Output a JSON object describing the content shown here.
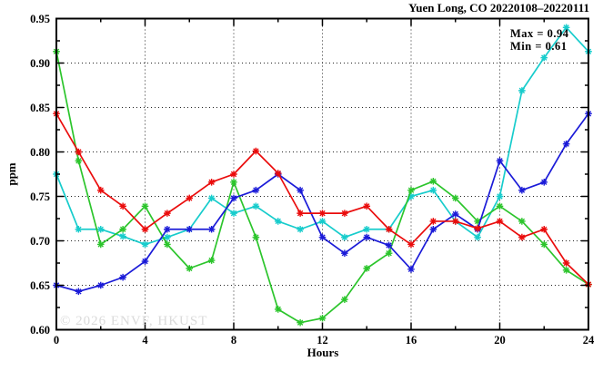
{
  "chart_data": {
    "type": "line",
    "title": "Yuen Long, CO 20220108–20220111",
    "xlabel": "Hours",
    "ylabel": "ppm",
    "xlim": [
      0,
      24
    ],
    "ylim": [
      0.6,
      0.95
    ],
    "x_major_ticks": [
      0,
      4,
      8,
      12,
      16,
      20,
      24
    ],
    "x_minor_ticks": [
      2,
      6,
      10,
      14,
      18,
      22
    ],
    "x_tick_labels": [
      "0",
      "4",
      "8",
      "12",
      "16",
      "20",
      "24"
    ],
    "y_major_ticks": [
      0.6,
      0.65,
      0.7,
      0.75,
      0.8,
      0.85,
      0.9,
      0.95
    ],
    "y_minor_ticks": [
      0.625,
      0.675,
      0.725,
      0.775,
      0.825,
      0.875,
      0.925
    ],
    "y_tick_labels": [
      "0.60",
      "0.65",
      "0.70",
      "0.75",
      "0.80",
      "0.85",
      "0.90",
      "0.95"
    ],
    "grid": "dotted",
    "legend": "none",
    "marker": "asterisk",
    "annotations": [
      "Max = 0.94",
      "Min = 0.61"
    ],
    "watermark": "© 2026 ENVF, HKUST",
    "x": [
      0,
      1,
      2,
      3,
      4,
      5,
      6,
      7,
      8,
      9,
      10,
      11,
      12,
      13,
      14,
      15,
      16,
      17,
      18,
      19,
      20,
      21,
      22,
      23,
      24
    ],
    "series": [
      {
        "name": "cyan",
        "color": "#17cccc",
        "values": [
          0.775,
          0.713,
          0.713,
          0.705,
          0.696,
          0.704,
          0.713,
          0.748,
          0.731,
          0.739,
          0.722,
          0.713,
          0.722,
          0.704,
          0.713,
          0.713,
          0.75,
          0.757,
          0.722,
          0.704,
          0.75,
          0.869,
          0.906,
          0.94,
          0.913
        ]
      },
      {
        "name": "green",
        "color": "#2cc52c",
        "values": [
          0.913,
          0.79,
          0.696,
          0.713,
          0.739,
          0.696,
          0.669,
          0.678,
          0.766,
          0.704,
          0.623,
          0.608,
          0.613,
          0.634,
          0.669,
          0.686,
          0.757,
          0.767,
          0.748,
          0.722,
          0.739,
          0.722,
          0.696,
          0.667,
          0.651
        ]
      },
      {
        "name": "blue",
        "color": "#1b1bd8",
        "values": [
          0.65,
          0.643,
          0.65,
          0.659,
          0.677,
          0.713,
          0.713,
          0.713,
          0.748,
          0.757,
          0.775,
          0.757,
          0.704,
          0.686,
          0.704,
          0.695,
          0.668,
          0.713,
          0.73,
          0.713,
          0.79,
          0.757,
          0.766,
          0.809,
          0.843
        ]
      },
      {
        "name": "red",
        "color": "#ea0c0c",
        "values": [
          0.843,
          0.8,
          0.757,
          0.739,
          0.713,
          0.731,
          0.748,
          0.766,
          0.775,
          0.801,
          0.776,
          0.731,
          0.731,
          0.731,
          0.739,
          0.713,
          0.696,
          0.722,
          0.722,
          0.714,
          0.722,
          0.704,
          0.713,
          0.675,
          0.651
        ]
      }
    ]
  }
}
